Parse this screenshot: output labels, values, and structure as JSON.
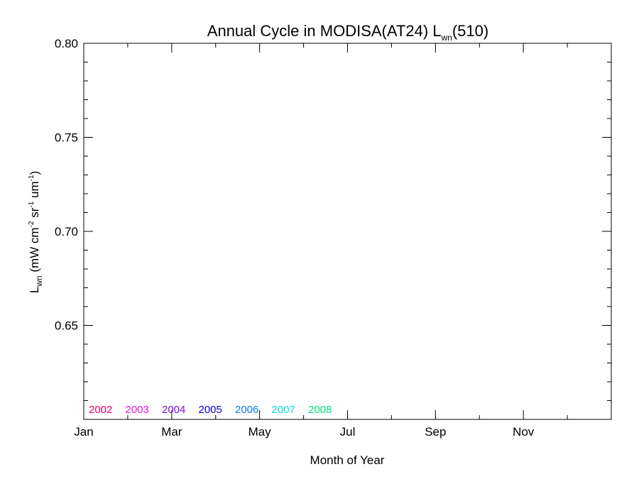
{
  "chart_data": {
    "type": "line",
    "title": {
      "main": "Annual Cycle in MODISA(AT24) L",
      "sub": "wn",
      "tail": "(510)"
    },
    "xlabel": "Month of Year",
    "ylabel": {
      "l": "L",
      "l_sub": "wn",
      "unit_a": " (mW cm",
      "sup_a": "-2",
      "unit_b": " sr",
      "sup_b": "-1",
      "unit_c": " um",
      "sup_c": "-1",
      "unit_d": ")"
    },
    "xlim": [
      1,
      13
    ],
    "ylim": [
      0.6,
      0.8
    ],
    "x_ticks": [
      {
        "value": 1,
        "label": "Jan"
      },
      {
        "value": 3,
        "label": "Mar"
      },
      {
        "value": 5,
        "label": "May"
      },
      {
        "value": 7,
        "label": "Jul"
      },
      {
        "value": 9,
        "label": "Sep"
      },
      {
        "value": 11,
        "label": "Nov"
      }
    ],
    "x_minor_ticks": [
      2,
      4,
      6,
      8,
      10,
      12
    ],
    "y_ticks": [
      {
        "value": 0.65,
        "label": "0.65"
      },
      {
        "value": 0.7,
        "label": "0.70"
      },
      {
        "value": 0.75,
        "label": "0.75"
      },
      {
        "value": 0.8,
        "label": "0.80"
      }
    ],
    "y_minor_ticks": [
      0.61,
      0.62,
      0.63,
      0.64,
      0.66,
      0.67,
      0.68,
      0.69,
      0.71,
      0.72,
      0.73,
      0.74,
      0.76,
      0.77,
      0.78,
      0.79
    ],
    "grid": false,
    "legend_position": "bottom-left",
    "series": [
      {
        "name": "2002",
        "color": "#e6006e",
        "values": []
      },
      {
        "name": "2003",
        "color": "#ee10dc",
        "values": []
      },
      {
        "name": "2004",
        "color": "#7a0ee0",
        "values": []
      },
      {
        "name": "2005",
        "color": "#0a00d8",
        "values": []
      },
      {
        "name": "2006",
        "color": "#0a78f0",
        "values": []
      },
      {
        "name": "2007",
        "color": "#00e0e8",
        "values": []
      },
      {
        "name": "2008",
        "color": "#00e07a",
        "values": []
      }
    ]
  }
}
